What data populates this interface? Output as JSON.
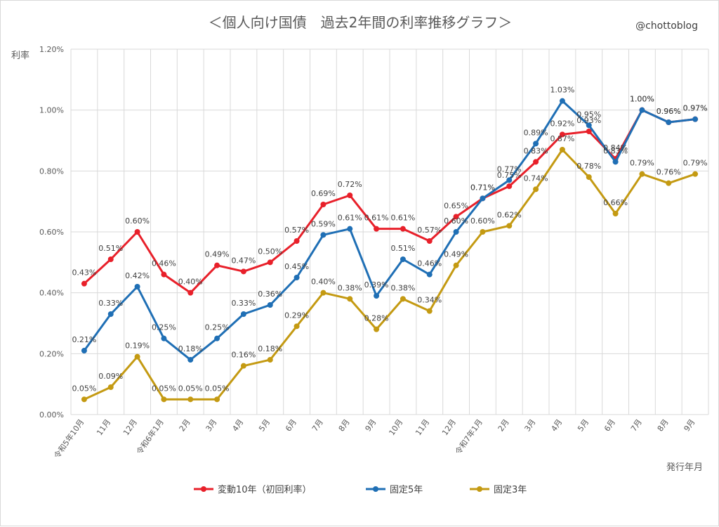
{
  "header": {
    "title": "＜個人向け国債　過去2年間の利率推移グラフ＞",
    "credit": "@chottoblog"
  },
  "chart_data": {
    "type": "line",
    "title": "＜個人向け国債　過去2年間の利率推移グラフ＞",
    "ylabel": "利率",
    "xlabel": "発行年月",
    "ylim": [
      0,
      1.2
    ],
    "yticks": [
      0,
      0.2,
      0.4,
      0.6,
      0.8,
      1.0,
      1.2
    ],
    "ytick_labels": [
      "0.00%",
      "0.20%",
      "0.40%",
      "0.60%",
      "0.80%",
      "1.00%",
      "1.20%"
    ],
    "grid": true,
    "legend_position": "bottom",
    "categories": [
      "令和5年10月",
      "11月",
      "12月",
      "令和6年1月",
      "2月",
      "3月",
      "4月",
      "5月",
      "6月",
      "7月",
      "8月",
      "9月",
      "10月",
      "11月",
      "12月",
      "令和7年1月",
      "2月",
      "3月",
      "4月",
      "5月",
      "6月",
      "7月",
      "8月",
      "9月"
    ],
    "series": [
      {
        "name": "変動10年（初回利率）",
        "color": "#e8202a",
        "values": [
          0.43,
          0.51,
          0.6,
          0.46,
          0.4,
          0.49,
          0.47,
          0.5,
          0.57,
          0.69,
          0.72,
          0.61,
          0.61,
          0.57,
          0.65,
          0.71,
          0.75,
          0.83,
          0.92,
          0.93,
          0.84,
          1.0,
          0.96,
          0.97
        ],
        "labels": [
          "0.43%",
          "0.51%",
          "0.60%",
          "0.46%",
          "0.40%",
          "0.49%",
          "0.47%",
          "0.50%",
          "0.57%",
          "0.69%",
          "0.72%",
          "0.61%",
          "0.61%",
          "0.57%",
          "0.65%",
          "0.71%",
          "0.75%",
          "0.83%",
          "0.92%",
          "0.93%",
          "0.84%",
          "1.00%",
          "0.96%",
          "0.97%"
        ]
      },
      {
        "name": "固定5年",
        "color": "#1f6fb5",
        "values": [
          0.21,
          0.33,
          0.42,
          0.25,
          0.18,
          0.25,
          0.33,
          0.36,
          0.45,
          0.59,
          0.61,
          0.39,
          0.51,
          0.46,
          0.6,
          0.71,
          0.77,
          0.89,
          1.03,
          0.95,
          0.83,
          1.0,
          0.96,
          0.97
        ],
        "labels": [
          "0.21%",
          "0.33%",
          "0.42%",
          "0.25%",
          "0.18%",
          "0.25%",
          "0.33%",
          "0.36%",
          "0.45%",
          "0.59%",
          "0.61%",
          "0.39%",
          "0.51%",
          "0.46%",
          "0.60%",
          "0.71%",
          "0.77%",
          "0.89%",
          "1.03%",
          "0.95%",
          "0.83%",
          "1.00%",
          "0.96%",
          "0.97%"
        ]
      },
      {
        "name": "固定3年",
        "color": "#c49a12",
        "values": [
          0.05,
          0.09,
          0.19,
          0.05,
          0.05,
          0.05,
          0.16,
          0.18,
          0.29,
          0.4,
          0.38,
          0.28,
          0.38,
          0.34,
          0.49,
          0.6,
          0.62,
          0.74,
          0.87,
          0.78,
          0.66,
          0.79,
          0.76,
          0.79
        ],
        "labels": [
          "0.05%",
          "0.09%",
          "0.19%",
          "0.05%",
          "0.05%",
          "0.05%",
          "0.16%",
          "0.18%",
          "0.29%",
          "0.40%",
          "0.38%",
          "0.28%",
          "0.38%",
          "0.34%",
          "0.49%",
          "0.60%",
          "0.62%",
          "0.74%",
          "0.87%",
          "0.78%",
          "0.66%",
          "0.79%",
          "0.76%",
          "0.79%"
        ]
      }
    ]
  }
}
